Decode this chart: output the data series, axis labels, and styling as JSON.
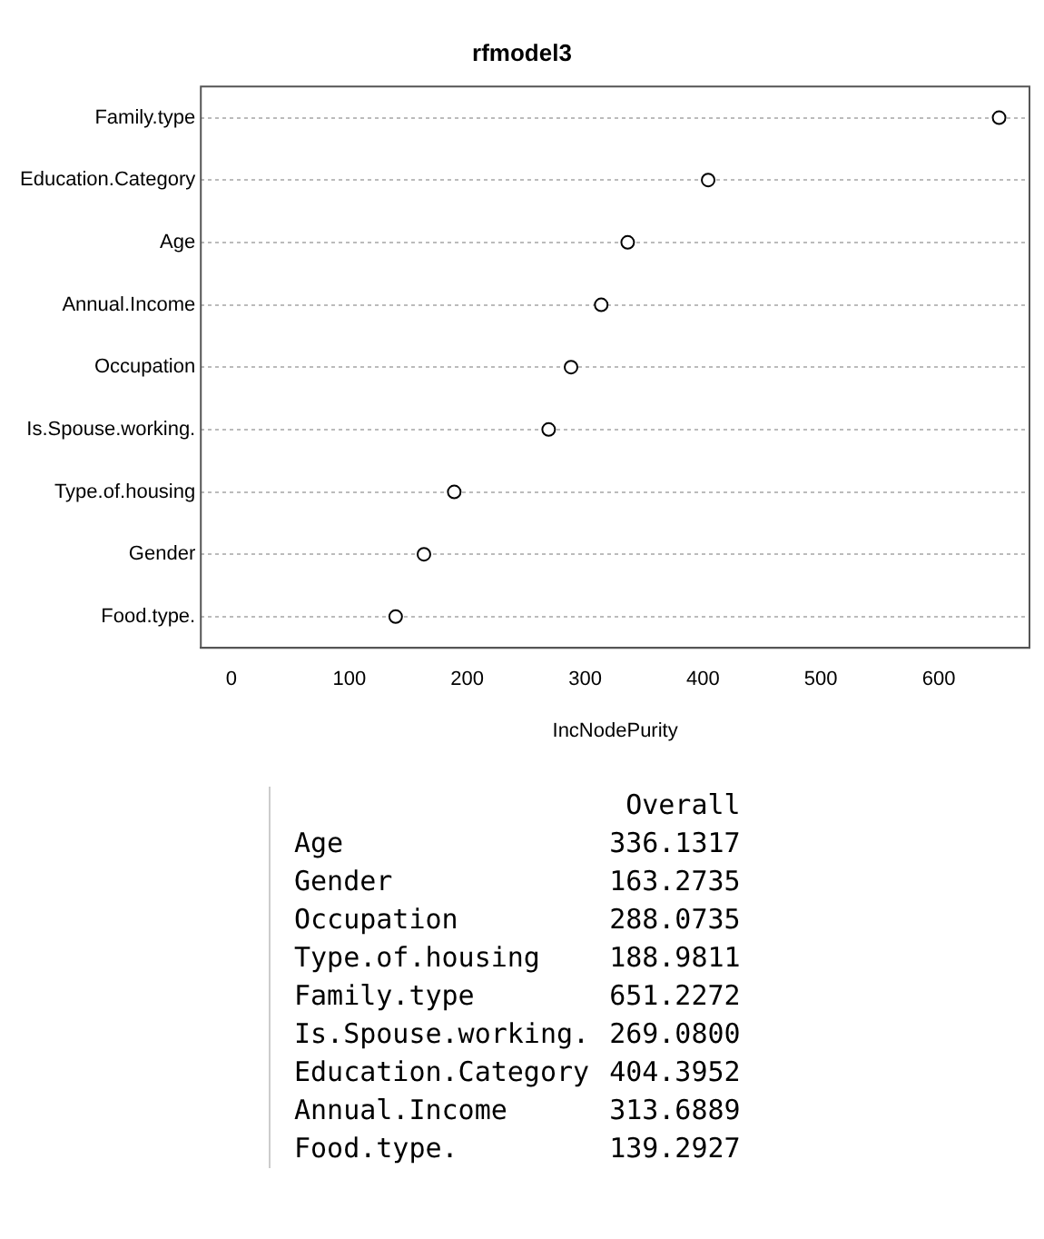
{
  "chart_data": [
    {
      "type": "scatter",
      "orientation": "horizontal",
      "title": "rfmodel3",
      "xlabel": "IncNodePurity",
      "categories": [
        "Family.type",
        "Education.Category",
        "Age",
        "Annual.Income",
        "Occupation",
        "Is.Spouse.working.",
        "Type.of.housing",
        "Gender",
        "Food.type."
      ],
      "values": [
        651.2272,
        404.3952,
        336.1317,
        313.6889,
        288.0735,
        269.08,
        188.9811,
        163.2735,
        139.2927
      ],
      "color": "#000000",
      "marker": "circle",
      "grid": "y",
      "xlim": [
        -26,
        677
      ],
      "xticks": [
        0,
        100,
        200,
        300,
        400,
        500,
        600
      ]
    },
    {
      "type": "other",
      "title": "Overall",
      "categories": [
        "Age",
        "Gender",
        "Occupation",
        "Type.of.housing",
        "Family.type",
        "Is.Spouse.working.",
        "Education.Category",
        "Annual.Income",
        "Food.type."
      ],
      "value_labels": [
        "336.1317",
        "163.2735",
        "288.0735",
        "188.9811",
        "651.2272",
        "269.0800",
        "404.3952",
        "313.6889",
        "139.2927"
      ]
    }
  ]
}
